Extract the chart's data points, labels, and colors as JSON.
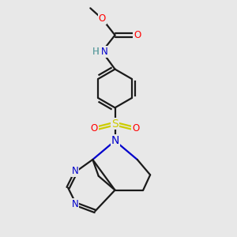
{
  "bg_color": "#e8e8e8",
  "bond_color": "#1a1a1a",
  "O_color": "#ff0000",
  "N_color": "#0000cc",
  "S_color": "#cccc00",
  "NH_H_color": "#5f9ea0",
  "NH_N_color": "#0000cc",
  "figsize": [
    3.0,
    3.0
  ],
  "dpi": 100,
  "xlim": [
    -1,
    9
  ],
  "ylim": [
    -0.5,
    9.5
  ]
}
